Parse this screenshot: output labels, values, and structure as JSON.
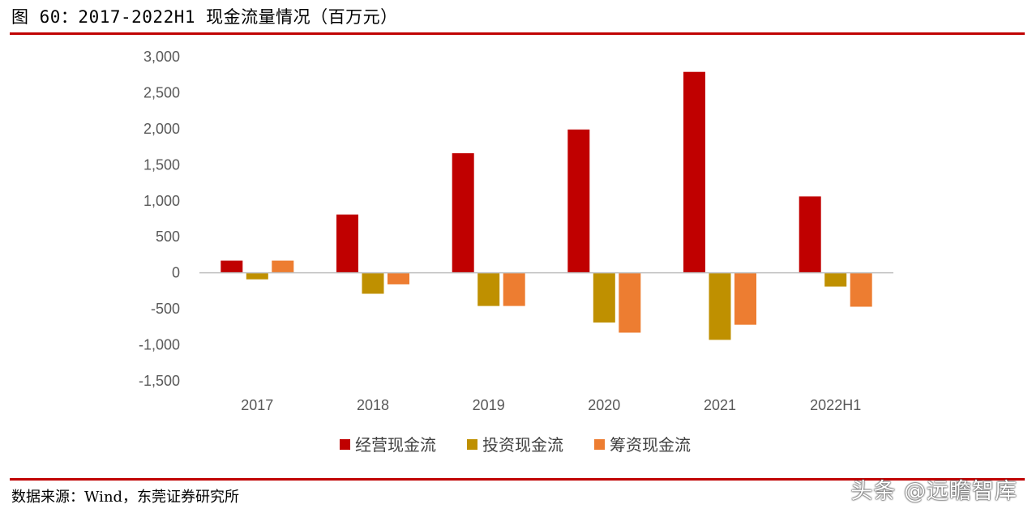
{
  "header": {
    "figure_title": "图 60：2017-2022H1 现金流量情况（百万元）"
  },
  "footer": {
    "source": "数据来源：Wind，东莞证券研究所",
    "watermark": "头条 @远瞻智库"
  },
  "colors": {
    "accent_rule": "#c00000",
    "operating": "#c00000",
    "investing": "#bf9000",
    "financing": "#ed7d31"
  },
  "chart_data": {
    "type": "bar",
    "title": "",
    "xlabel": "",
    "ylabel": "",
    "ylim": [
      -1500,
      3000
    ],
    "yticks": [
      3000,
      2500,
      2000,
      1500,
      1000,
      500,
      0,
      -500,
      -1000,
      -1500
    ],
    "ytick_labels": [
      "3,000",
      "2,500",
      "2,000",
      "1,500",
      "1,000",
      "500",
      "0",
      "-500",
      "-1,000",
      "-1,500"
    ],
    "categories": [
      "2017",
      "2018",
      "2019",
      "2020",
      "2021",
      "2022H1"
    ],
    "grid": false,
    "legend_position": "bottom",
    "series": [
      {
        "name": "经营现金流",
        "color": "#c00000",
        "values": [
          170,
          810,
          1660,
          1990,
          2790,
          1060
        ]
      },
      {
        "name": "投资现金流",
        "color": "#bf9000",
        "values": [
          -90,
          -290,
          -460,
          -690,
          -930,
          -190
        ]
      },
      {
        "name": "筹资现金流",
        "color": "#ed7d31",
        "values": [
          170,
          -160,
          -460,
          -830,
          -720,
          -470
        ]
      }
    ]
  }
}
